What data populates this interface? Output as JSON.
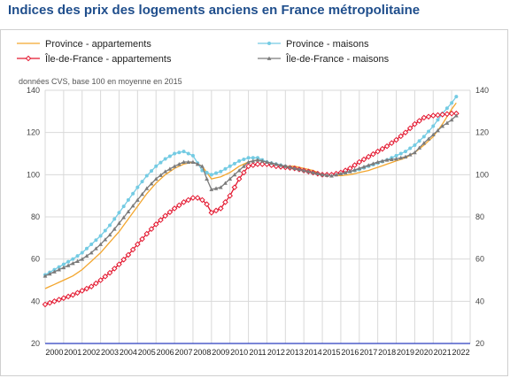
{
  "title": "Indices des prix des logements anciens en France métropolitaine",
  "chart_data": {
    "type": "line",
    "title": "Indices des prix des logements anciens en France métropolitaine",
    "subtitle": "données CVS, base 100 en moyenne en 2015",
    "xlabel": "",
    "ylabel": "",
    "ylim": [
      20,
      140
    ],
    "yticks": [
      20,
      40,
      60,
      80,
      100,
      120,
      140
    ],
    "x_categories": [
      "2000",
      "2001",
      "2002",
      "2003",
      "2004",
      "2005",
      "2006",
      "2007",
      "2008",
      "2009",
      "2010",
      "2011",
      "2012",
      "2013",
      "2014",
      "2015",
      "2016",
      "2017",
      "2018",
      "2019",
      "2020",
      "2021",
      "2022"
    ],
    "x_granularity": "quarterly",
    "grid": true,
    "legend_position": "top",
    "series": [
      {
        "name": "Province - appartements",
        "color": "#f3a62e",
        "marker": "none",
        "x": [
          2000.0,
          2000.5,
          2001.0,
          2001.5,
          2002.0,
          2002.5,
          2003.0,
          2003.5,
          2004.0,
          2004.5,
          2005.0,
          2005.5,
          2006.0,
          2006.5,
          2007.0,
          2007.5,
          2008.0,
          2008.5,
          2009.0,
          2009.5,
          2010.0,
          2010.5,
          2011.0,
          2011.5,
          2012.0,
          2012.5,
          2013.0,
          2013.5,
          2014.0,
          2014.5,
          2015.0,
          2015.5,
          2016.0,
          2016.5,
          2017.0,
          2017.5,
          2018.0,
          2018.5,
          2019.0,
          2019.5,
          2020.0,
          2020.5,
          2021.0,
          2021.5,
          2022.0,
          2022.25
        ],
        "values": [
          46,
          48,
          50,
          52,
          55,
          59,
          63,
          68,
          73,
          79,
          85,
          91,
          96,
          100,
          103,
          105,
          106,
          104,
          98,
          99,
          101,
          104,
          106,
          107,
          106,
          105,
          104,
          104,
          103,
          102,
          100,
          100,
          99.5,
          100,
          101,
          102,
          103.5,
          105,
          106.5,
          108,
          110.5,
          114,
          118,
          124,
          131,
          134
        ]
      },
      {
        "name": "Province - maisons",
        "color": "#74cbe3",
        "marker": "dot",
        "x": [
          2000.0,
          2000.5,
          2001.0,
          2001.5,
          2002.0,
          2002.5,
          2003.0,
          2003.5,
          2004.0,
          2004.5,
          2005.0,
          2005.5,
          2006.0,
          2006.5,
          2007.0,
          2007.5,
          2008.0,
          2008.5,
          2009.0,
          2009.5,
          2010.0,
          2010.5,
          2011.0,
          2011.5,
          2012.0,
          2012.5,
          2013.0,
          2013.5,
          2014.0,
          2014.5,
          2015.0,
          2015.5,
          2016.0,
          2016.5,
          2017.0,
          2017.5,
          2018.0,
          2018.5,
          2019.0,
          2019.5,
          2020.0,
          2020.5,
          2021.0,
          2021.5,
          2022.0,
          2022.25
        ],
        "values": [
          52.5,
          55,
          57.5,
          60,
          63,
          67,
          71,
          76,
          82,
          88,
          94,
          99.5,
          104,
          107.5,
          110,
          111,
          109,
          102,
          100,
          101.5,
          104,
          106.5,
          108,
          108,
          106,
          105,
          104,
          103,
          102,
          101,
          100,
          100,
          100.5,
          101.5,
          102.5,
          104,
          105.5,
          107,
          109,
          111,
          114,
          118,
          123,
          129,
          134,
          137
        ]
      },
      {
        "name": "Île-de-France - appartements",
        "color": "#e3172f",
        "marker": "diamond",
        "x": [
          2000.0,
          2000.5,
          2001.0,
          2001.5,
          2002.0,
          2002.5,
          2003.0,
          2003.5,
          2004.0,
          2004.5,
          2005.0,
          2005.5,
          2006.0,
          2006.5,
          2007.0,
          2007.5,
          2008.0,
          2008.25,
          2008.5,
          2008.75,
          2009.0,
          2009.5,
          2010.0,
          2010.5,
          2011.0,
          2011.5,
          2012.0,
          2012.5,
          2013.0,
          2013.5,
          2014.0,
          2014.5,
          2015.0,
          2015.5,
          2016.0,
          2016.5,
          2017.0,
          2017.5,
          2018.0,
          2018.5,
          2019.0,
          2019.5,
          2020.0,
          2020.5,
          2021.0,
          2021.5,
          2022.0,
          2022.25
        ],
        "values": [
          38.5,
          40,
          41.5,
          43,
          45,
          47,
          50,
          53.5,
          57.5,
          62,
          67,
          72,
          76.5,
          80.5,
          84,
          87,
          89,
          89,
          88,
          86,
          82,
          84,
          90,
          98,
          104,
          105,
          105,
          104,
          103.5,
          103,
          102,
          101,
          100,
          100,
          101,
          103,
          106,
          108.5,
          111,
          113.5,
          116.5,
          120,
          124,
          127,
          128,
          128.5,
          129,
          129
        ]
      },
      {
        "name": "Île-de-France - maisons",
        "color": "#7b7b7b",
        "marker": "triangle",
        "x": [
          2000.0,
          2000.5,
          2001.0,
          2001.5,
          2002.0,
          2002.5,
          2003.0,
          2003.5,
          2004.0,
          2004.5,
          2005.0,
          2005.5,
          2006.0,
          2006.5,
          2007.0,
          2007.5,
          2008.0,
          2008.5,
          2008.75,
          2009.0,
          2009.5,
          2010.0,
          2010.5,
          2011.0,
          2011.5,
          2012.0,
          2012.5,
          2013.0,
          2013.5,
          2014.0,
          2014.5,
          2015.0,
          2015.5,
          2016.0,
          2016.5,
          2017.0,
          2017.5,
          2018.0,
          2018.5,
          2019.0,
          2019.5,
          2020.0,
          2020.5,
          2021.0,
          2021.5,
          2022.0,
          2022.25
        ],
        "values": [
          52,
          54,
          56,
          58,
          60,
          63,
          67,
          71.5,
          77,
          82.5,
          88,
          93.5,
          98,
          101.5,
          104,
          106,
          106,
          104,
          98,
          93,
          94,
          98,
          102,
          106,
          107,
          106,
          105,
          104,
          103,
          102,
          101,
          100,
          99.5,
          100.5,
          101.5,
          103,
          104.5,
          106,
          107,
          107.5,
          108.5,
          110.5,
          115,
          119,
          123,
          126,
          128
        ]
      }
    ]
  }
}
